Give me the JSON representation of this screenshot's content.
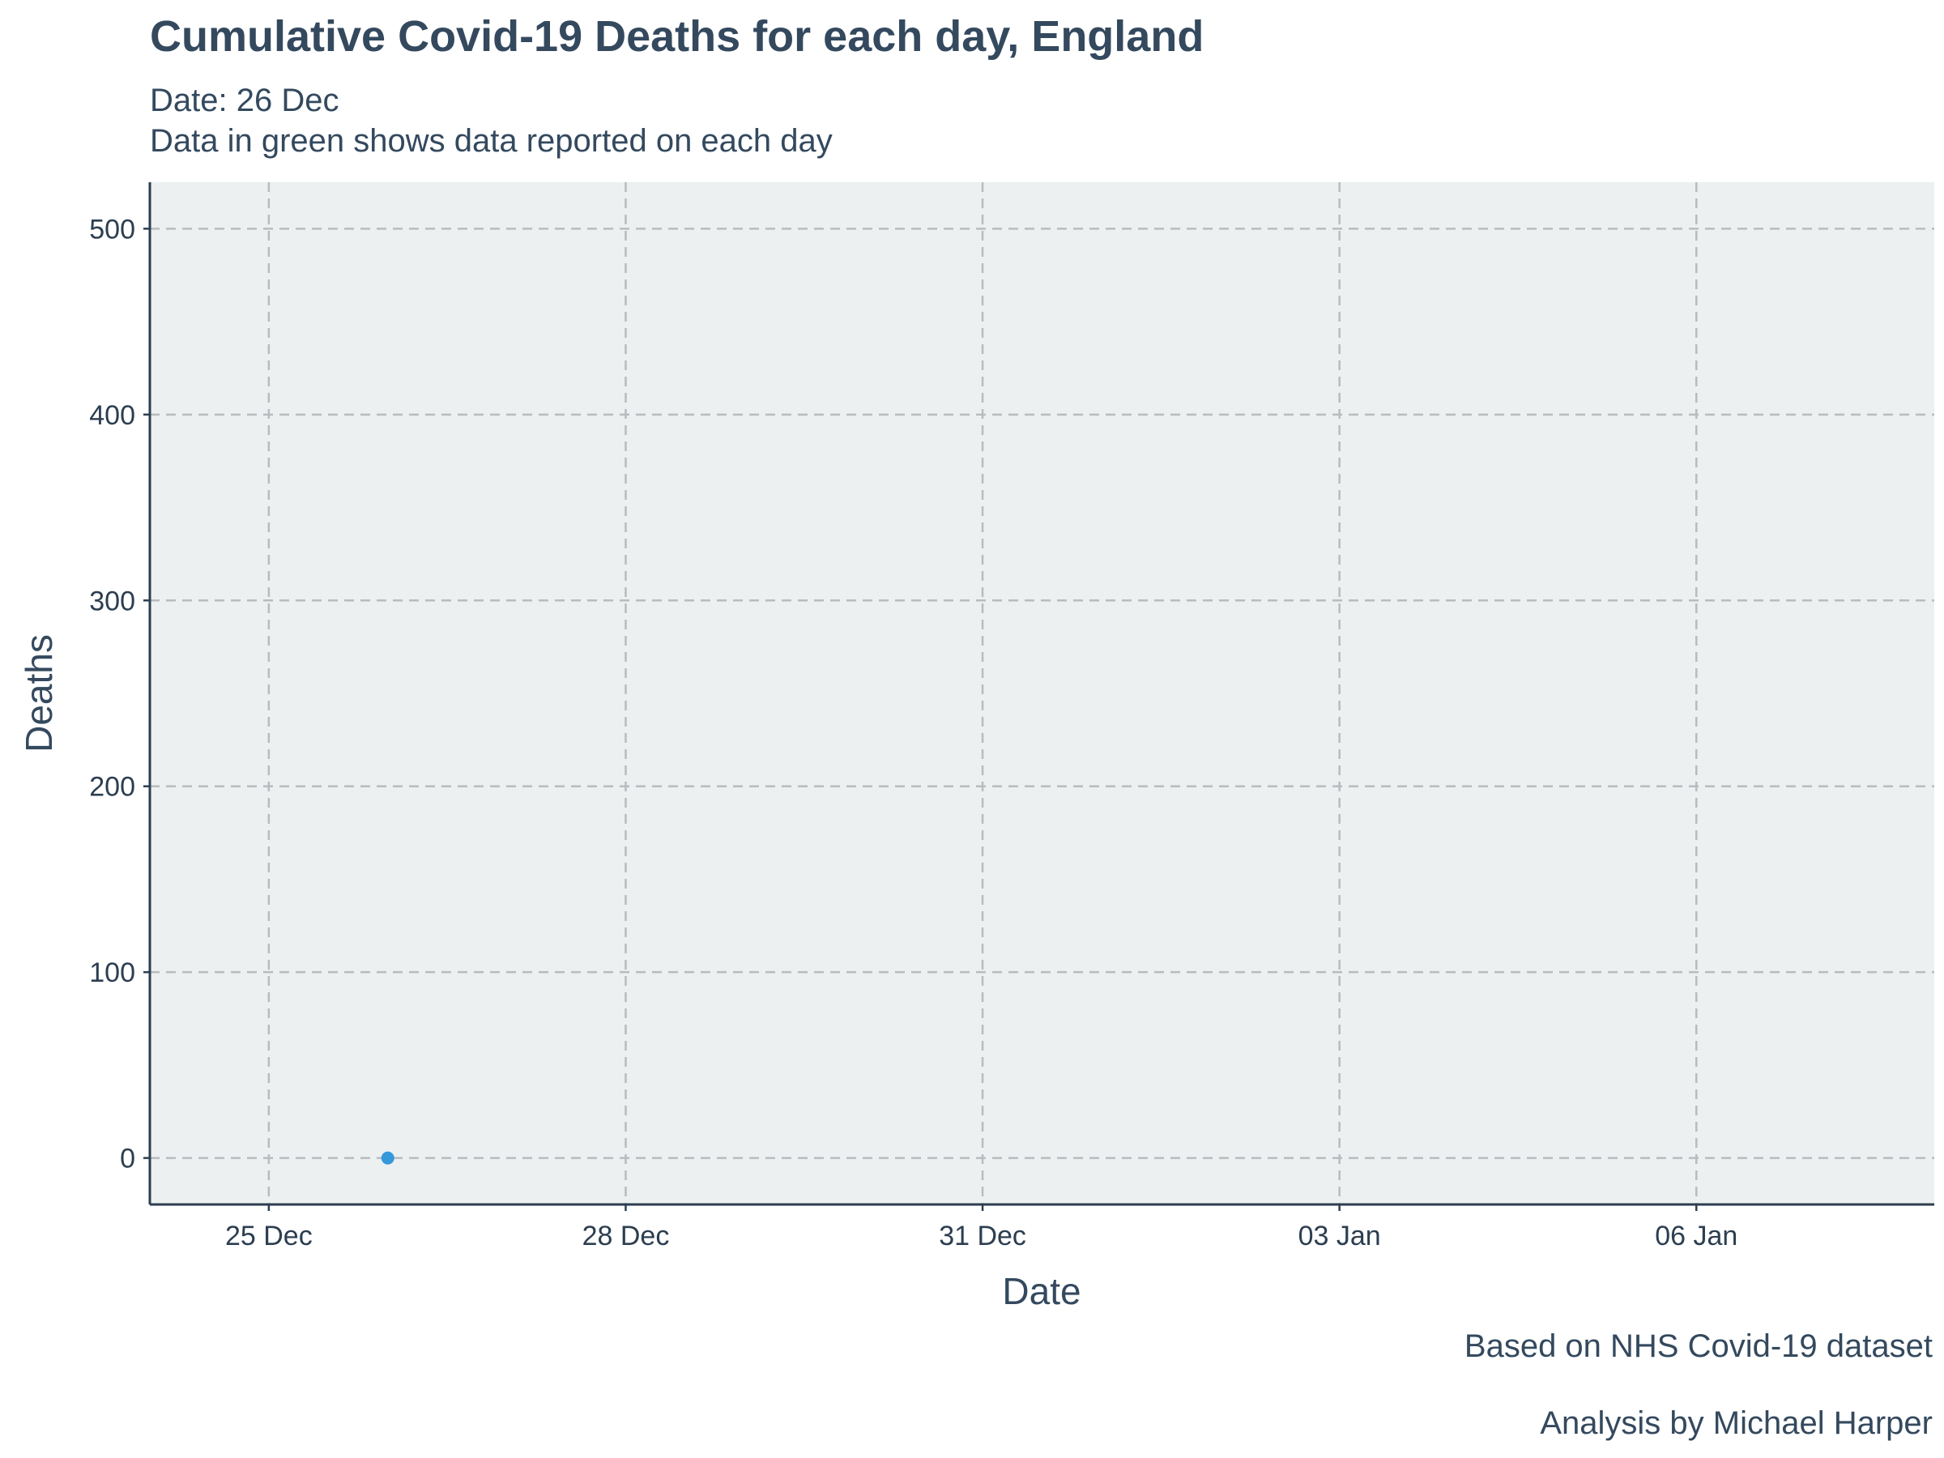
{
  "chart_data": {
    "type": "scatter",
    "title": "Cumulative Covid-19 Deaths for each day, England",
    "subtitle_lines": [
      "Date: 26 Dec",
      "Data in green shows data reported on each day"
    ],
    "xlabel": "Date",
    "ylabel": "Deaths",
    "x_ticks": [
      {
        "date": "2020-12-25",
        "label": "25 Dec"
      },
      {
        "date": "2020-12-28",
        "label": "28 Dec"
      },
      {
        "date": "2020-12-31",
        "label": "31 Dec"
      },
      {
        "date": "2021-01-03",
        "label": "03 Jan"
      },
      {
        "date": "2021-01-06",
        "label": "06 Jan"
      }
    ],
    "xlim": [
      "2020-12-24",
      "2021-01-08"
    ],
    "y_ticks": [
      0,
      100,
      200,
      300,
      400,
      500
    ],
    "ylim": [
      -25,
      525
    ],
    "grid": true,
    "grid_style": "dashed",
    "panel_background": "#ecf0f1",
    "point_color": "#3498db",
    "series": [
      {
        "points": [
          {
            "x": "2020-12-26",
            "y": 0
          }
        ]
      }
    ]
  },
  "captions": [
    "Based on NHS Covid-19 dataset",
    "Analysis by Michael Harper"
  ]
}
